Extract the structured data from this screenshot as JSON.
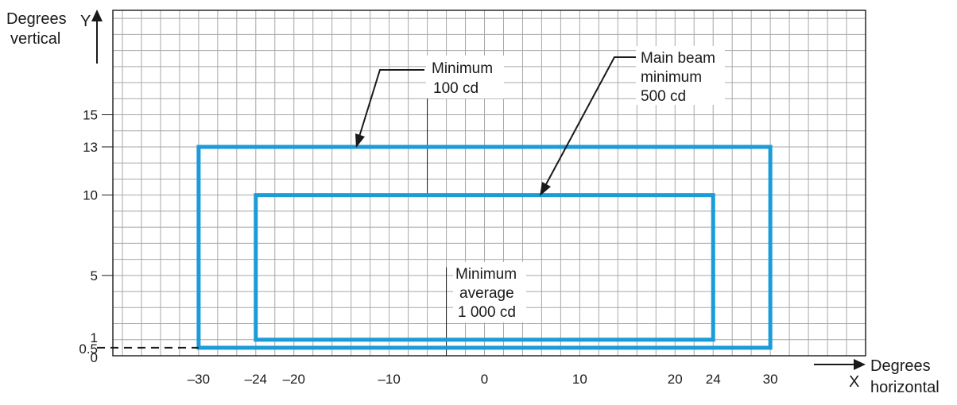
{
  "chart_data": {
    "type": "rectangle-regions",
    "x_axis_letter": "X",
    "y_axis_letter": "Y",
    "xlabel_line1": "Degrees",
    "xlabel_line2": "horizontal",
    "ylabel_line1": "Degrees",
    "ylabel_line2": "vertical",
    "xlim": [
      -39,
      40
    ],
    "ylim": [
      0,
      21.5
    ],
    "x_ticks": [
      {
        "value": -30,
        "label": "–30"
      },
      {
        "value": -24,
        "label": "–24"
      },
      {
        "value": -20,
        "label": "–20"
      },
      {
        "value": -10,
        "label": "–10"
      },
      {
        "value": 0,
        "label": "0"
      },
      {
        "value": 10,
        "label": "10"
      },
      {
        "value": 20,
        "label": "20"
      },
      {
        "value": 24,
        "label": "24"
      },
      {
        "value": 30,
        "label": "30"
      }
    ],
    "y_ticks": [
      {
        "value": 0,
        "label": "0"
      },
      {
        "value": 0.5,
        "label": "0.5"
      },
      {
        "value": 1,
        "label": "1"
      },
      {
        "value": 5,
        "label": "5"
      },
      {
        "value": 10,
        "label": "10"
      },
      {
        "value": 13,
        "label": "13"
      },
      {
        "value": 15,
        "label": "15"
      }
    ],
    "regions": [
      {
        "name": "Minimum 100 cd",
        "x": [
          -30,
          30
        ],
        "y": [
          0.5,
          13
        ],
        "color": "#1b9bd7"
      },
      {
        "name": "Main beam minimum 500 cd",
        "x": [
          -24,
          24
        ],
        "y": [
          1,
          10
        ],
        "color": "#1b9bd7"
      }
    ],
    "reference_lines": [
      {
        "x": -6,
        "y_from": 10,
        "y_to": 18
      },
      {
        "x": -4,
        "y_from": 0,
        "y_to": 5.5
      }
    ],
    "annotations": {
      "min100": {
        "lines": [
          "Minimum",
          "100 cd"
        ],
        "points_to": {
          "x": -14.5,
          "y": 13
        }
      },
      "main_beam": {
        "lines": [
          "Main beam",
          "minimum",
          "500 cd"
        ],
        "points_to": {
          "x": 5,
          "y": 10
        }
      },
      "avg": {
        "lines": [
          "Minimum",
          "average",
          "1 000 cd"
        ]
      }
    }
  }
}
